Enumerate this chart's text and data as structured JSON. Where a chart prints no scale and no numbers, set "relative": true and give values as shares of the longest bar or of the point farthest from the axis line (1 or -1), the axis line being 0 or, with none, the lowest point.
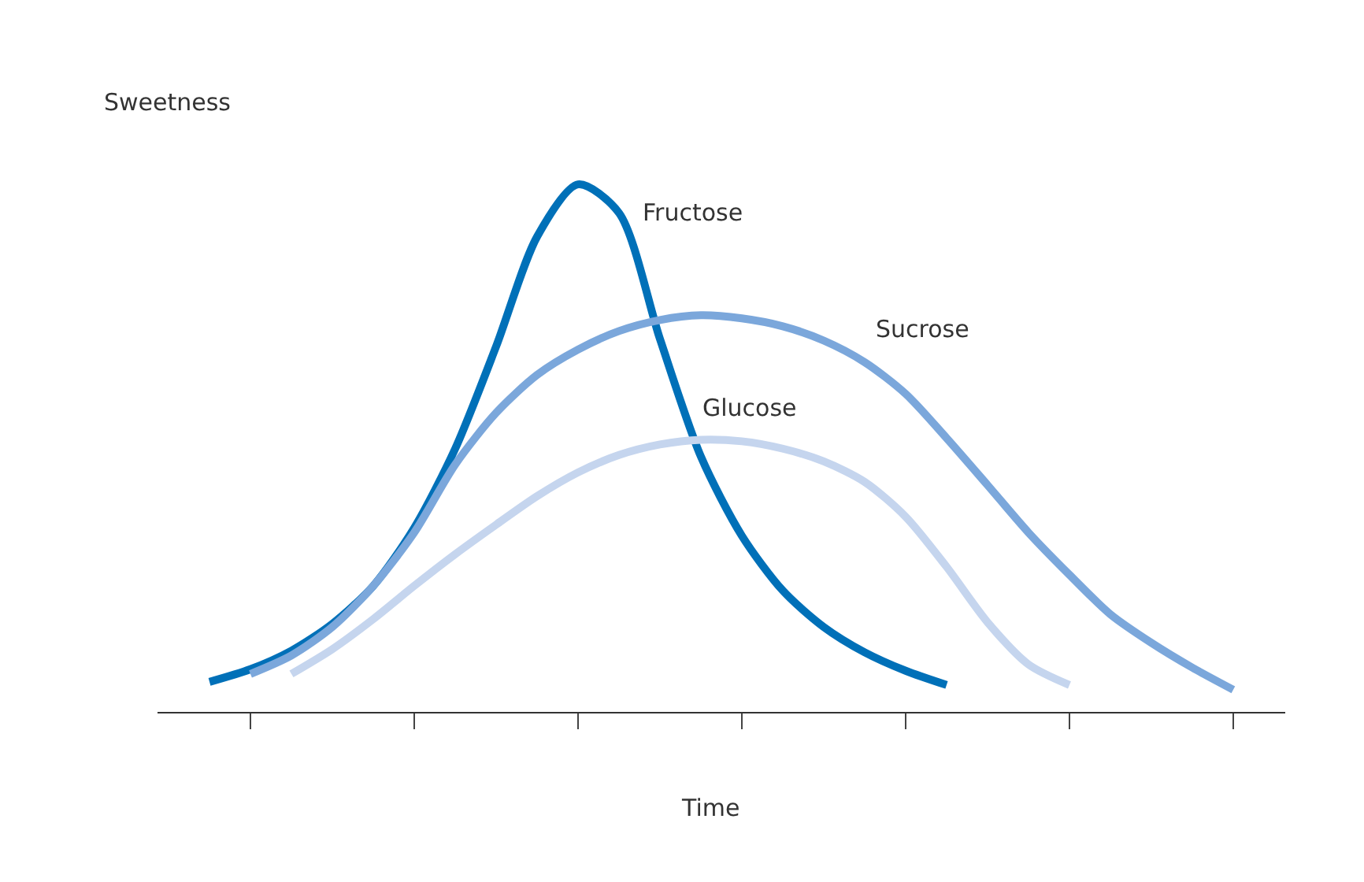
{
  "chart_data": {
    "type": "line",
    "relative": true,
    "xlabel": "Time",
    "ylabel": "Sweetness",
    "legend": false,
    "categories": [
      null,
      null,
      null,
      null,
      null,
      null,
      null,
      null,
      null,
      null,
      null,
      null,
      null,
      null,
      null,
      null,
      null,
      null,
      null,
      null,
      null,
      null,
      null,
      null,
      null,
      null
    ],
    "series": [
      {
        "name": "Fructose",
        "color": "#0070b8",
        "values": [
          0.057,
          0.081,
          0.116,
          0.167,
          0.239,
          0.349,
          0.499,
          0.693,
          0.901,
          1,
          0.946,
          0.707,
          0.484,
          0.334,
          0.23,
          0.161,
          0.113,
          0.078,
          0.051,
          null,
          null,
          null,
          null,
          null,
          null,
          null
        ]
      },
      {
        "name": "Sucrose",
        "color": "#7ba7db",
        "values": [
          null,
          0.072,
          0.107,
          0.161,
          0.239,
          0.34,
          0.469,
          0.567,
          0.639,
          0.687,
          0.722,
          0.743,
          0.752,
          0.746,
          0.731,
          0.704,
          0.663,
          0.603,
          0.519,
          0.43,
          0.34,
          0.26,
          0.185,
          0.131,
          0.084,
          0.042
        ]
      },
      {
        "name": "Glucose",
        "color": "#c5d5ee",
        "values": [
          null,
          null,
          0.072,
          0.119,
          0.176,
          0.239,
          0.299,
          0.355,
          0.409,
          0.454,
          0.487,
          0.507,
          0.516,
          0.513,
          0.499,
          0.475,
          0.436,
          0.37,
          0.275,
          0.17,
          0.09,
          0.051,
          null,
          null,
          null,
          null
        ]
      }
    ]
  }
}
